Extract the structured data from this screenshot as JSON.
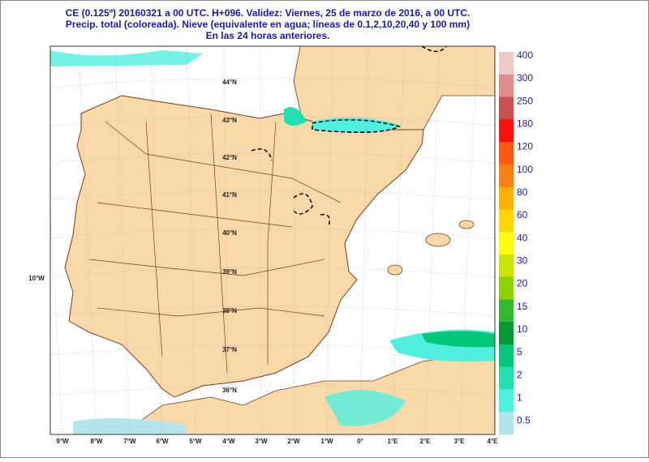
{
  "header": {
    "lines": [
      "CE (0.125º) 20160321 a 00 UTC.  H+096. Validez: Viernes, 25 de marzo de 2016,  a  00 UTC.",
      "Precip. total (coloreada). Nieve (equivalente en agua; líneas de 0.1,2,10,20,40 y 100 mm)",
      "En las 24 horas anteriores."
    ]
  },
  "map": {
    "lat_labels": [
      "44°N",
      "43°N",
      "42°N",
      "41°N",
      "40°N",
      "39°N",
      "38°N",
      "37°N",
      "36°N"
    ],
    "lon_labels": [
      "9°W",
      "8°W",
      "7°W",
      "6°W",
      "5°W",
      "4°W",
      "3°W",
      "2°W",
      "1°W",
      "0°",
      "1°E",
      "2°E",
      "3°E",
      "4°E"
    ],
    "side_label": "10°W"
  },
  "colorbar": {
    "levels": [
      "400",
      "300",
      "250",
      "180",
      "120",
      "100",
      "80",
      "60",
      "40",
      "30",
      "20",
      "15",
      "10",
      "5",
      "2",
      "1",
      "0.5"
    ],
    "colors": [
      "#f2c9c9",
      "#de8c8c",
      "#c85050",
      "#ff1010",
      "#ff5a10",
      "#ff8010",
      "#ffb000",
      "#ffd800",
      "#ffff00",
      "#c8e600",
      "#8cd200",
      "#33b833",
      "#009a30",
      "#00c878",
      "#20e0b0",
      "#50f0e0",
      "#b4e4ec"
    ]
  }
}
